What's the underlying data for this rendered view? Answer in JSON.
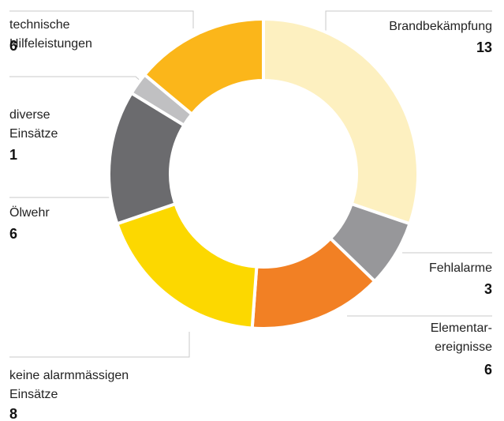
{
  "chart_data": {
    "type": "donut",
    "categories": [
      "Brandbekämpfung",
      "Fehlalarme",
      "Elementar-\nereignisse",
      "keine alarmmässigen\nEinsätze",
      "Ölwehr",
      "diverse\nEinsätze",
      "technische\nHilfeleistungen"
    ],
    "values": [
      13,
      3,
      6,
      8,
      6,
      1,
      6
    ],
    "colors": [
      "#fdf0c0",
      "#97979a",
      "#f28024",
      "#fcd800",
      "#6b6b6e",
      "#c0c0c2",
      "#fbb61a"
    ]
  }
}
